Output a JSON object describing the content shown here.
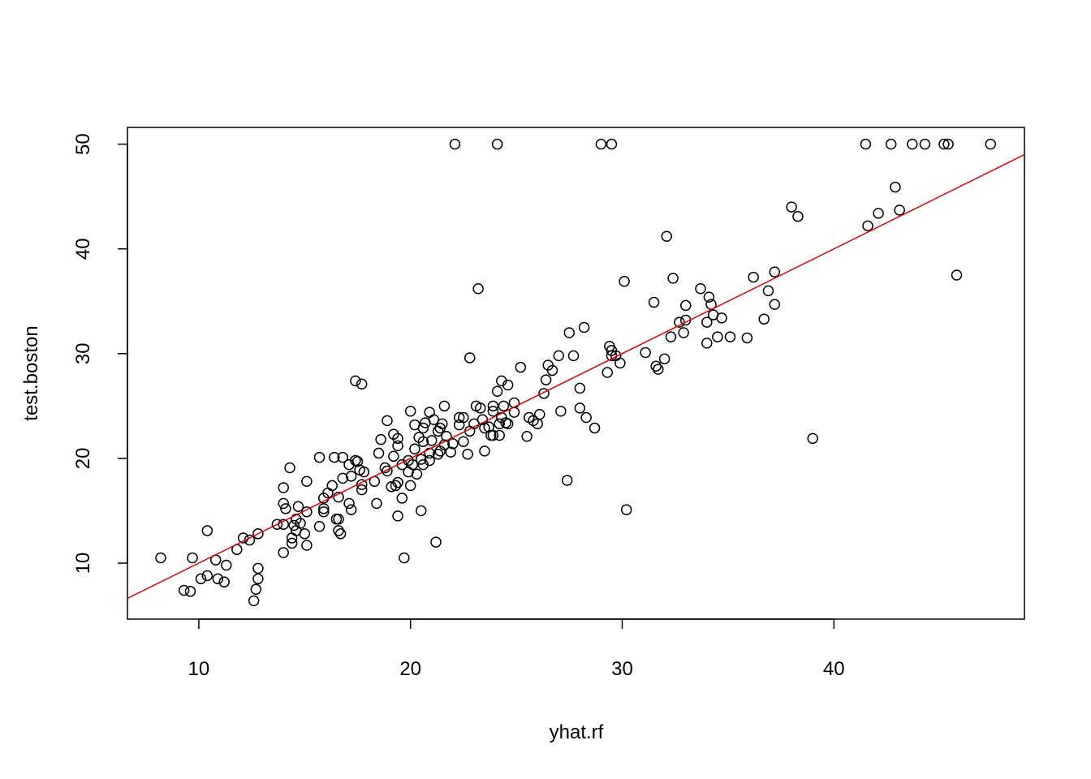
{
  "chart_data": {
    "type": "scatter",
    "x_label": "yhat.rf",
    "y_label": "test.boston",
    "xlim": [
      6.63,
      49.0
    ],
    "ylim": [
      4.65,
      51.6
    ],
    "xticks": [
      10,
      20,
      30,
      40
    ],
    "yticks": [
      10,
      20,
      30,
      40,
      50
    ],
    "color": "#000000",
    "abline": {
      "intercept": 0,
      "slope": 1,
      "color": "#e00000"
    },
    "x": [
      8.2,
      9.7,
      9.3,
      9.6,
      10.4,
      10.1,
      10.4,
      10.8,
      10.9,
      11.2,
      11.3,
      11.8,
      12.1,
      12.4,
      12.8,
      12.8,
      12.8,
      12.7,
      12.6,
      13.7,
      14.0,
      14.0,
      14.0,
      14.0,
      14.1,
      14.3,
      14.4,
      14.4,
      14.5,
      14.6,
      14.6,
      14.7,
      14.8,
      15.0,
      15.1,
      15.1,
      15.1,
      15.7,
      15.7,
      15.9,
      15.9,
      15.9,
      16.1,
      16.3,
      16.4,
      16.5,
      16.6,
      16.6,
      16.7,
      16.8,
      16.8,
      16.6,
      17.1,
      17.2,
      17.1,
      17.2,
      17.4,
      17.4,
      17.7,
      17.5,
      17.6,
      17.7,
      17.7,
      17.8,
      18.3,
      18.4,
      18.5,
      18.6,
      18.8,
      18.9,
      18.9,
      19.1,
      19.2,
      19.2,
      19.3,
      19.4,
      19.4,
      19.4,
      19.4,
      19.6,
      19.6,
      19.7,
      19.9,
      19.9,
      20.0,
      20.0,
      20.1,
      20.2,
      20.2,
      20.3,
      20.4,
      20.5,
      20.5,
      20.6,
      20.6,
      20.6,
      20.7,
      20.9,
      20.9,
      20.9,
      21.0,
      21.1,
      21.2,
      21.3,
      21.3,
      21.4,
      21.4,
      21.5,
      21.6,
      21.6,
      21.7,
      21.9,
      22.0,
      22.1,
      22.3,
      22.3,
      22.5,
      22.5,
      22.8,
      22.7,
      22.8,
      23.0,
      23.1,
      23.2,
      23.3,
      23.4,
      23.5,
      23.5,
      23.7,
      23.8,
      23.9,
      23.9,
      23.9,
      24.1,
      24.1,
      24.2,
      24.2,
      24.3,
      24.3,
      24.4,
      24.5,
      24.6,
      24.6,
      24.9,
      24.9,
      25.2,
      25.5,
      25.6,
      25.8,
      26.0,
      26.1,
      26.3,
      26.4,
      26.5,
      26.7,
      27.1,
      27.0,
      27.4,
      27.5,
      27.7,
      28.0,
      28.0,
      28.2,
      28.3,
      28.7,
      29.0,
      29.5,
      29.4,
      29.3,
      29.5,
      29.5,
      29.7,
      29.9,
      30.1,
      30.2,
      31.1,
      31.5,
      31.6,
      31.7,
      32.0,
      32.1,
      32.3,
      32.4,
      32.7,
      32.9,
      33.0,
      33.0,
      33.7,
      34.0,
      34.0,
      34.1,
      34.2,
      34.3,
      34.5,
      34.7,
      35.1,
      35.9,
      36.2,
      36.7,
      36.9,
      37.2,
      37.2,
      38.0,
      38.3,
      39.0,
      41.5,
      41.6,
      42.1,
      42.7,
      42.9,
      43.1,
      43.7,
      44.3,
      45.2,
      45.4,
      45.8,
      47.4
    ],
    "values": [
      10.5,
      10.5,
      7.4,
      7.3,
      13.1,
      8.5,
      8.8,
      10.3,
      8.5,
      8.2,
      9.8,
      11.3,
      12.4,
      12.2,
      12.8,
      9.5,
      8.5,
      7.5,
      6.4,
      13.7,
      13.7,
      11.0,
      17.2,
      15.7,
      15.2,
      19.1,
      12.4,
      11.9,
      13.6,
      14.2,
      13.1,
      15.4,
      13.8,
      12.8,
      14.9,
      11.7,
      17.8,
      20.1,
      13.5,
      16.2,
      15.2,
      14.9,
      16.7,
      17.4,
      20.1,
      14.2,
      14.2,
      13.1,
      12.8,
      18.1,
      20.1,
      16.3,
      15.7,
      15.1,
      19.4,
      18.3,
      19.8,
      27.4,
      27.1,
      19.7,
      18.9,
      17.5,
      17.0,
      18.7,
      17.8,
      15.7,
      20.5,
      21.8,
      19.1,
      23.6,
      18.8,
      17.3,
      22.3,
      20.2,
      17.4,
      21.9,
      14.5,
      17.7,
      21.2,
      19.4,
      16.2,
      10.5,
      18.7,
      19.8,
      17.4,
      24.5,
      19.4,
      20.9,
      23.2,
      18.5,
      22.0,
      19.9,
      15.0,
      21.6,
      22.9,
      19.4,
      23.4,
      20.5,
      19.8,
      24.4,
      21.7,
      23.7,
      12.0,
      22.6,
      20.4,
      22.9,
      20.7,
      23.3,
      25.0,
      21.3,
      22.1,
      20.6,
      21.4,
      50,
      23.9,
      23.2,
      21.6,
      23.9,
      29.6,
      20.4,
      22.6,
      23.3,
      25.0,
      36.2,
      24.8,
      23.7,
      20.7,
      22.9,
      23.0,
      22.2,
      25.0,
      22.2,
      24.5,
      26.4,
      50,
      23.3,
      22.2,
      23.9,
      27.4,
      25.0,
      23.4,
      27.0,
      23.3,
      24.4,
      25.3,
      28.7,
      22.1,
      23.9,
      23.6,
      23.3,
      24.2,
      26.2,
      27.5,
      28.9,
      28.4,
      24.5,
      29.8,
      17.9,
      32.0,
      29.8,
      26.7,
      24.8,
      32.5,
      23.9,
      22.9,
      50,
      50,
      30.7,
      28.2,
      30.3,
      29.8,
      29.8,
      29.1,
      36.9,
      15.1,
      30.1,
      34.9,
      28.8,
      28.5,
      29.5,
      41.2,
      31.6,
      37.2,
      33.0,
      32.0,
      34.6,
      33.2,
      36.2,
      33.0,
      31.0,
      35.4,
      34.7,
      33.7,
      31.6,
      33.4,
      31.6,
      31.5,
      37.3,
      33.3,
      36.0,
      34.7,
      37.8,
      44.0,
      43.1,
      21.9,
      50,
      42.2,
      43.4,
      50,
      45.9,
      43.7,
      50,
      50,
      50,
      50,
      37.5,
      50
    ]
  }
}
